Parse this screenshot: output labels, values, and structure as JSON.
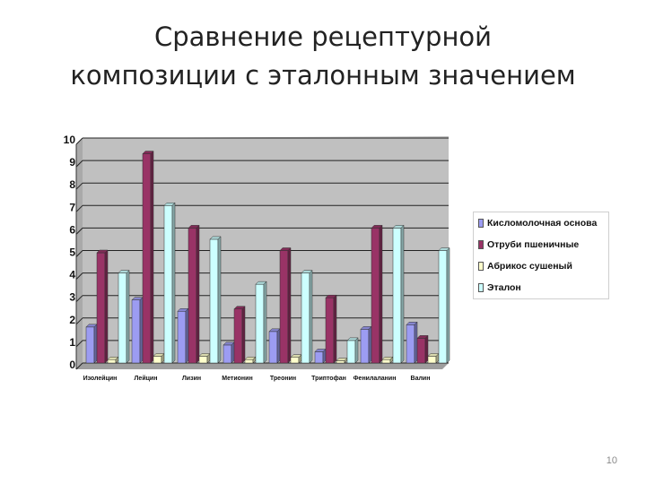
{
  "slide": {
    "title_line1": "Сравнение рецептурной",
    "title_line2": "композиции с эталонным значением",
    "page_number": "10"
  },
  "chart_data": {
    "type": "bar",
    "title": "",
    "xlabel": "",
    "ylabel": "",
    "ylim": [
      0,
      10
    ],
    "yticks": [
      "0",
      "1",
      "2",
      "3",
      "4",
      "5",
      "6",
      "7",
      "8",
      "9",
      "10"
    ],
    "grid": true,
    "legend_position": "right",
    "categories": [
      "Изолейцин",
      "Лейцин",
      "Лизин",
      "Метионин",
      "Треонин",
      "Триптофан",
      "Фенилаланин",
      "Валин"
    ],
    "series": [
      {
        "name": "Кисломолочная основа",
        "color": "#9c9cf2",
        "values": [
          1.6,
          2.8,
          2.3,
          0.8,
          1.4,
          0.5,
          1.5,
          1.7
        ]
      },
      {
        "name": "Отруби пшеничные",
        "color": "#993366",
        "values": [
          4.9,
          9.3,
          6.0,
          2.4,
          5.0,
          2.9,
          6.0,
          1.1
        ]
      },
      {
        "name": "Абрикос сушеный",
        "color": "#ffffcc",
        "values": [
          0.15,
          0.3,
          0.3,
          0.15,
          0.25,
          0.1,
          0.15,
          0.3
        ]
      },
      {
        "name": "Эталон",
        "color": "#ccffff",
        "values": [
          4.0,
          7.0,
          5.5,
          3.5,
          4.0,
          1.0,
          6.0,
          5.0
        ]
      }
    ]
  }
}
